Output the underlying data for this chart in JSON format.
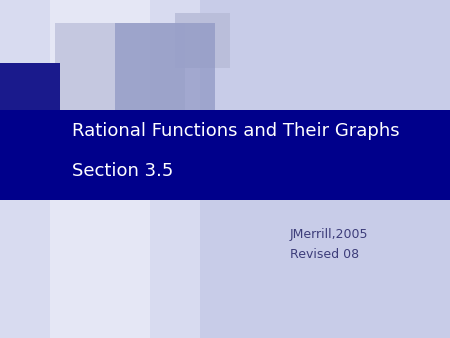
{
  "bg_color": "#c8cce8",
  "banner_color": "#00008b",
  "text_color_white": "#ffffff",
  "text_color_dark": "#3d3d7a",
  "title_text_line1": "Rational Functions and Their Graphs",
  "title_text_line2": "Section 3.5",
  "subtitle_line1": "JMerrill,2005",
  "subtitle_line2": "Revised 08",
  "sq_light": "#b8bcd8",
  "sq_medium": "#9098c4",
  "sq_dark": "#1a1a8c",
  "left_fade_color": "#e8eaf8"
}
